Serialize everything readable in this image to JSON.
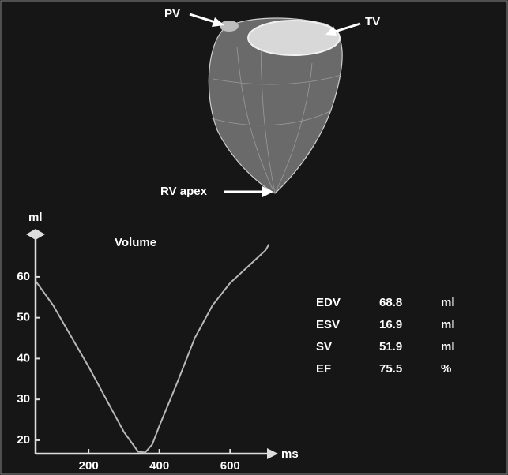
{
  "annotations": {
    "pv": "PV",
    "tv": "TV",
    "apex": "RV apex"
  },
  "chart_data": {
    "type": "line",
    "title": "Volume",
    "y_label": "ml",
    "x_label": "ms",
    "x": [
      50,
      100,
      150,
      200,
      250,
      300,
      340,
      360,
      380,
      400,
      450,
      500,
      550,
      600,
      650,
      700,
      710
    ],
    "values": [
      59,
      53,
      45.5,
      38,
      30,
      22,
      17.2,
      17,
      19,
      23.5,
      34,
      45,
      53,
      58.5,
      62.5,
      66.5,
      68
    ],
    "color": "#b8b8b8",
    "xlim": [
      50,
      720
    ],
    "xticks": [
      200,
      400,
      600
    ],
    "ylim": [
      16.7,
      70.8
    ],
    "yticks": [
      20,
      30,
      40,
      50,
      60
    ]
  },
  "stats": {
    "rows": [
      [
        "EDV",
        "68.8",
        "ml"
      ],
      [
        "ESV",
        "16.9",
        "ml"
      ],
      [
        "SV",
        "51.9",
        "ml"
      ],
      [
        "EF",
        "75.5",
        "%"
      ]
    ]
  }
}
